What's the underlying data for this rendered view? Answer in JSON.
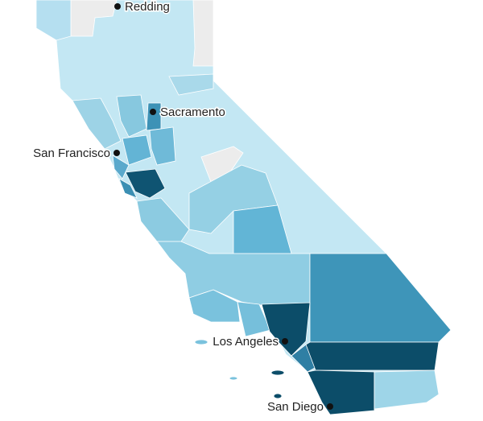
{
  "cities": [
    {
      "label": "Redding"
    },
    {
      "label": "Sacramento"
    },
    {
      "label": "San Francisco"
    },
    {
      "label": "Los Angeles"
    },
    {
      "label": "San Diego"
    }
  ]
}
